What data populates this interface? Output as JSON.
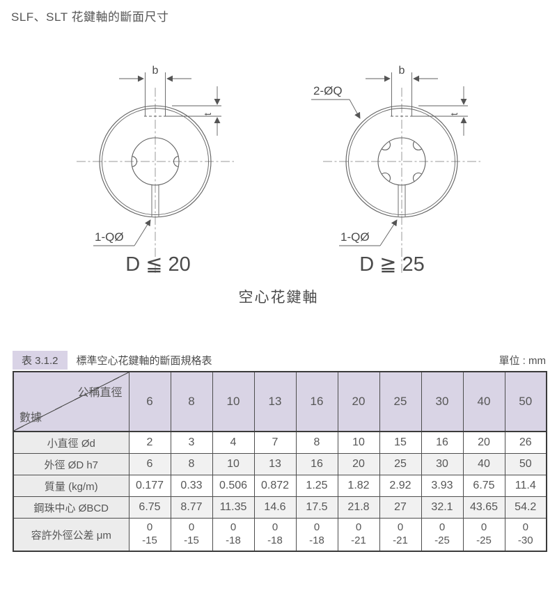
{
  "page": {
    "title": "SLF、SLT 花鍵軸的斷面尺寸"
  },
  "diagram": {
    "caption": "空心花鍵軸",
    "left": {
      "dim_b": "b",
      "dim_t": "t",
      "leader_hole": "1-QØ",
      "caption": "D ≦ 20"
    },
    "right": {
      "dim_b": "b",
      "dim_t": "t",
      "leader_holes": "2-ØQ",
      "leader_hole": "1-QØ",
      "caption": "D ≧ 25"
    }
  },
  "table": {
    "badge": "表 3.1.2",
    "title": "標準空心花鍵軸的斷面規格表",
    "unit": "單位 : mm",
    "corner": {
      "top_right": "公稱直徑",
      "bottom_left": "數據"
    },
    "columns": [
      "6",
      "8",
      "10",
      "13",
      "16",
      "20",
      "25",
      "30",
      "40",
      "50"
    ],
    "rows": [
      {
        "label": "小直徑 Ød",
        "values": [
          "2",
          "3",
          "4",
          "7",
          "8",
          "10",
          "15",
          "16",
          "20",
          "26"
        ]
      },
      {
        "label": "外徑 ØD h7",
        "values": [
          "6",
          "8",
          "10",
          "13",
          "16",
          "20",
          "25",
          "30",
          "40",
          "50"
        ]
      },
      {
        "label": "質量 (kg/m)",
        "values": [
          "0.177",
          "0.33",
          "0.506",
          "0.872",
          "1.25",
          "1.82",
          "2.92",
          "3.93",
          "6.75",
          "11.4"
        ]
      },
      {
        "label": "鋼珠中心 ØBCD",
        "values": [
          "6.75",
          "8.77",
          "11.35",
          "14.6",
          "17.5",
          "21.8",
          "27",
          "32.1",
          "43.65",
          "54.2"
        ]
      },
      {
        "label": "容許外徑公差 μm",
        "values_stacked": [
          [
            "0",
            "-15"
          ],
          [
            "0",
            "-15"
          ],
          [
            "0",
            "-18"
          ],
          [
            "0",
            "-18"
          ],
          [
            "0",
            "-18"
          ],
          [
            "0",
            "-21"
          ],
          [
            "0",
            "-21"
          ],
          [
            "0",
            "-25"
          ],
          [
            "0",
            "-25"
          ],
          [
            "0",
            "-30"
          ]
        ]
      }
    ]
  },
  "colors": {
    "header_bg": "#d9d4e5",
    "label_bg": "#ececec",
    "stripe_bg": "#f1f1f1",
    "border": "#4d4d4d",
    "line": "#5f5f5f",
    "text": "#4f4f4f"
  }
}
